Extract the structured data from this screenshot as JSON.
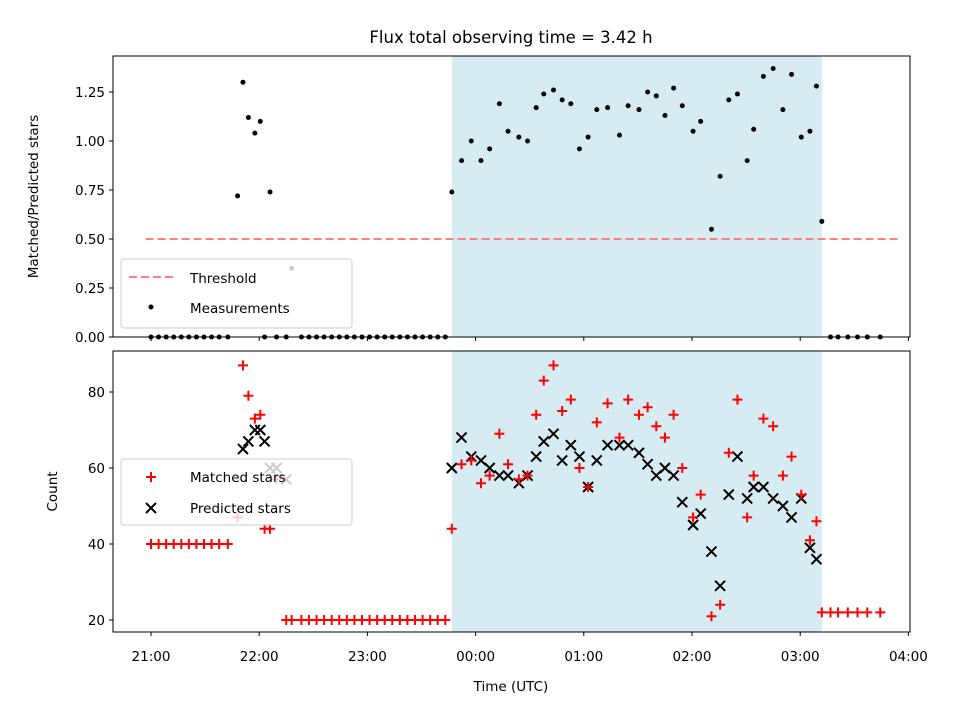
{
  "chart_data": [
    {
      "type": "scatter",
      "title": "Flux total observing time = 3.42 h",
      "xlabel": "",
      "ylabel": "Matched/Predicted stars",
      "ylim": [
        0,
        1.44
      ],
      "yticks": [
        "0.00",
        "0.25",
        "0.50",
        "0.75",
        "1.00",
        "1.25"
      ],
      "shaded_span": {
        "x": [
          2.78,
          6.2
        ],
        "color": "#add8e6"
      },
      "threshold": {
        "name": "Threshold",
        "y": 0.5,
        "x": [
          -0.05,
          6.9
        ],
        "color": "#ff7f7f"
      },
      "legend": {
        "position": "lower-left",
        "entries": [
          "Threshold",
          "Measurements"
        ]
      },
      "series": [
        {
          "name": "Measurements",
          "marker": "dot",
          "color": "#000000",
          "x": [
            0.0,
            0.07,
            0.14,
            0.21,
            0.28,
            0.35,
            0.42,
            0.49,
            0.56,
            0.63,
            0.71,
            0.8,
            0.85,
            0.9,
            0.96,
            1.01,
            1.05,
            1.1,
            1.16,
            1.25,
            1.3,
            1.39,
            1.46,
            1.53,
            1.6,
            1.67,
            1.74,
            1.81,
            1.88,
            1.95,
            2.02,
            2.09,
            2.16,
            2.23,
            2.3,
            2.37,
            2.44,
            2.51,
            2.58,
            2.65,
            2.72,
            2.78,
            2.87,
            2.96,
            3.05,
            3.13,
            3.22,
            3.3,
            3.4,
            3.48,
            3.56,
            3.63,
            3.72,
            3.8,
            3.88,
            3.96,
            4.04,
            4.12,
            4.22,
            4.33,
            4.41,
            4.51,
            4.59,
            4.67,
            4.75,
            4.83,
            4.91,
            5.01,
            5.08,
            5.18,
            5.26,
            5.34,
            5.42,
            5.51,
            5.57,
            5.66,
            5.75,
            5.84,
            5.92,
            6.01,
            6.09,
            6.15,
            6.2,
            6.28,
            6.35,
            6.44,
            6.53,
            6.62,
            6.74
          ],
          "y": [
            0.0,
            0.0,
            0.0,
            0.0,
            0.0,
            0.0,
            0.0,
            0.0,
            0.0,
            0.0,
            0.0,
            0.72,
            1.3,
            1.12,
            1.04,
            1.1,
            0.0,
            0.74,
            0.0,
            0.0,
            0.35,
            0.0,
            0.0,
            0.0,
            0.0,
            0.0,
            0.0,
            0.0,
            0.0,
            0.0,
            0.0,
            0.0,
            0.0,
            0.0,
            0.0,
            0.0,
            0.0,
            0.0,
            0.0,
            0.0,
            0.0,
            0.74,
            0.9,
            1.0,
            0.9,
            0.96,
            1.19,
            1.05,
            1.02,
            1.0,
            1.17,
            1.24,
            1.26,
            1.21,
            1.19,
            0.96,
            1.02,
            1.16,
            1.17,
            1.03,
            1.18,
            1.16,
            1.25,
            1.23,
            1.13,
            1.27,
            1.18,
            1.05,
            1.1,
            0.55,
            0.82,
            1.21,
            1.24,
            0.9,
            1.06,
            1.33,
            1.37,
            1.16,
            1.34,
            1.02,
            1.05,
            1.28,
            0.59,
            0.0,
            0.0,
            0.0,
            0.0,
            0.0,
            0.0
          ]
        }
      ]
    },
    {
      "type": "scatter",
      "title": "",
      "xlabel": "Time (UTC)",
      "ylabel": "Count",
      "ylim": [
        16.5,
        90.5
      ],
      "yticks": [
        "20",
        "40",
        "60",
        "80"
      ],
      "xticks": [
        "21:00",
        "22:00",
        "23:00",
        "00:00",
        "01:00",
        "02:00",
        "03:00",
        "04:00"
      ],
      "shaded_span": {
        "x": [
          2.78,
          6.2
        ],
        "color": "#add8e6"
      },
      "legend": {
        "position": "center-left",
        "entries": [
          "Matched stars",
          "Predicted stars"
        ]
      },
      "series": [
        {
          "name": "Matched stars",
          "marker": "plus",
          "color": "#ff0000",
          "x": [
            0.0,
            0.07,
            0.14,
            0.21,
            0.28,
            0.35,
            0.42,
            0.49,
            0.56,
            0.63,
            0.71,
            0.8,
            0.85,
            0.9,
            0.96,
            1.01,
            1.05,
            1.1,
            1.16,
            1.25,
            1.3,
            1.39,
            1.46,
            1.53,
            1.6,
            1.67,
            1.74,
            1.81,
            1.88,
            1.95,
            2.02,
            2.09,
            2.16,
            2.23,
            2.3,
            2.37,
            2.44,
            2.51,
            2.58,
            2.65,
            2.72,
            2.78,
            2.87,
            2.96,
            3.05,
            3.13,
            3.22,
            3.3,
            3.4,
            3.48,
            3.56,
            3.63,
            3.72,
            3.8,
            3.88,
            3.96,
            4.04,
            4.12,
            4.22,
            4.33,
            4.41,
            4.51,
            4.59,
            4.67,
            4.75,
            4.83,
            4.91,
            5.01,
            5.08,
            5.18,
            5.26,
            5.34,
            5.42,
            5.51,
            5.57,
            5.66,
            5.75,
            5.84,
            5.92,
            6.01,
            6.09,
            6.15,
            6.2,
            6.28,
            6.35,
            6.44,
            6.53,
            6.62,
            6.74
          ],
          "y": [
            40,
            40,
            40,
            40,
            40,
            40,
            40,
            40,
            40,
            40,
            40,
            47,
            87,
            79,
            73,
            74,
            44,
            44,
            57,
            20,
            20,
            20,
            20,
            20,
            20,
            20,
            20,
            20,
            20,
            20,
            20,
            20,
            20,
            20,
            20,
            20,
            20,
            20,
            20,
            20,
            20,
            44,
            61,
            62,
            56,
            58,
            69,
            61,
            57,
            58,
            74,
            83,
            87,
            75,
            78,
            60,
            55,
            72,
            77,
            68,
            78,
            74,
            76,
            71,
            68,
            74,
            60,
            47,
            53,
            21,
            24,
            64,
            78,
            47,
            58,
            73,
            71,
            58,
            63,
            53,
            41,
            46,
            22,
            22,
            22,
            22,
            22,
            22,
            22
          ]
        },
        {
          "name": "Predicted stars",
          "marker": "x",
          "color": "#000000",
          "x": [
            0.85,
            0.9,
            0.96,
            1.01,
            1.05,
            1.1,
            1.16,
            1.25,
            2.78,
            2.87,
            2.96,
            3.05,
            3.13,
            3.22,
            3.3,
            3.4,
            3.48,
            3.56,
            3.63,
            3.72,
            3.8,
            3.88,
            3.96,
            4.04,
            4.12,
            4.22,
            4.33,
            4.41,
            4.51,
            4.59,
            4.67,
            4.75,
            4.83,
            4.91,
            5.01,
            5.08,
            5.18,
            5.26,
            5.34,
            5.42,
            5.51,
            5.57,
            5.66,
            5.75,
            5.84,
            5.92,
            6.01,
            6.09,
            6.15
          ],
          "y": [
            65,
            67,
            70,
            70,
            67,
            60,
            60,
            57,
            60,
            68,
            63,
            62,
            60,
            58,
            58,
            56,
            58,
            63,
            67,
            69,
            62,
            66,
            63,
            55,
            62,
            66,
            66,
            66,
            64,
            61,
            58,
            60,
            58,
            51,
            45,
            48,
            38,
            29,
            53,
            63,
            52,
            55,
            55,
            52,
            50,
            47,
            52,
            39,
            36
          ]
        }
      ]
    }
  ]
}
